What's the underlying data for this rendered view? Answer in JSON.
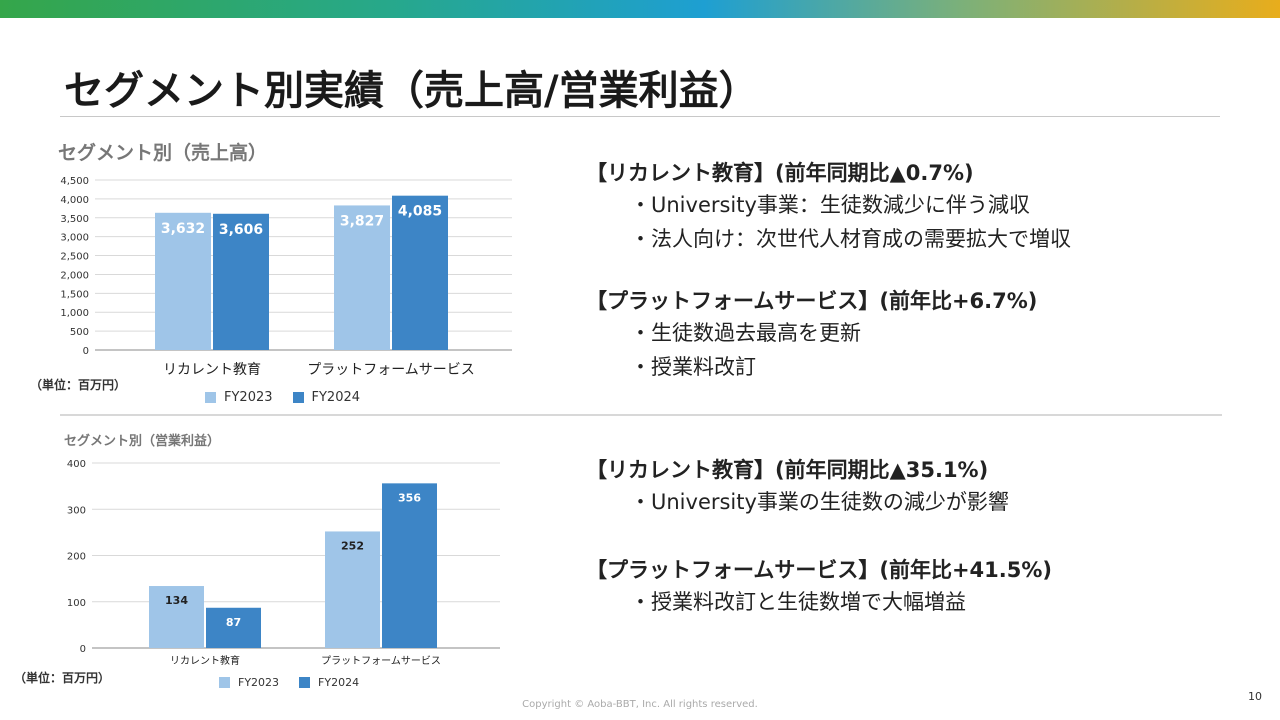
{
  "page": {
    "title": "セグメント別実績（売上高/営業利益）",
    "footer": "Copyright © Aoba-BBT, Inc.  All rights reserved.",
    "page_number": "10"
  },
  "colors": {
    "fy2023": "#9fc5e8",
    "fy2024": "#3d85c6",
    "grid": "#d9d9d9"
  },
  "chart_data": [
    {
      "type": "bar",
      "title": "セグメント別（売上高）",
      "unit": "（単位：百万円）",
      "categories": [
        "リカレント教育",
        "プラットフォームサービス"
      ],
      "series": [
        {
          "name": "FY2023",
          "values": [
            3632,
            3827
          ],
          "labels": [
            "3,632",
            "3,827"
          ]
        },
        {
          "name": "FY2024",
          "values": [
            3606,
            4085
          ],
          "labels": [
            "3,606",
            "4,085"
          ]
        }
      ],
      "ylim": [
        0,
        4500
      ],
      "yticks": [
        0,
        500,
        1000,
        1500,
        2000,
        2500,
        3000,
        3500,
        4000,
        4500
      ],
      "ytick_labels": [
        "0",
        "500",
        "1,000",
        "1,500",
        "2,000",
        "2,500",
        "3,000",
        "3,500",
        "4,000",
        "4,500"
      ],
      "grid": true,
      "legend": "bottom"
    },
    {
      "type": "bar",
      "title": "セグメント別（営業利益）",
      "unit": "（単位：百万円）",
      "categories": [
        "リカレント教育",
        "プラットフォームサービス"
      ],
      "series": [
        {
          "name": "FY2023",
          "values": [
            134,
            252
          ],
          "labels": [
            "134",
            "252"
          ]
        },
        {
          "name": "FY2024",
          "values": [
            87,
            356
          ],
          "labels": [
            "87",
            "356"
          ]
        }
      ],
      "ylim": [
        0,
        400
      ],
      "yticks": [
        0,
        100,
        200,
        300,
        400
      ],
      "ytick_labels": [
        "0",
        "100",
        "200",
        "300",
        "400"
      ],
      "grid": true,
      "legend": "bottom"
    }
  ],
  "sales_notes": {
    "recurrent": {
      "heading": "【リカレント教育】(前年同期比▲0.7%)",
      "bullets": [
        "・University事業：生徒数減少に伴う減収",
        "・法人向け：次世代人材育成の需要拡大で増収"
      ]
    },
    "platform": {
      "heading": "【プラットフォームサービス】(前年比+6.7%)",
      "bullets": [
        "・生徒数過去最高を更新",
        "・授業料改訂"
      ]
    }
  },
  "profit_notes": {
    "recurrent": {
      "heading": "【リカレント教育】(前年同期比▲35.1%)",
      "bullets": [
        "・University事業の生徒数の減少が影響"
      ]
    },
    "platform": {
      "heading": "【プラットフォームサービス】(前年比+41.5%)",
      "bullets": [
        "・授業料改訂と生徒数増で大幅増益"
      ]
    }
  }
}
